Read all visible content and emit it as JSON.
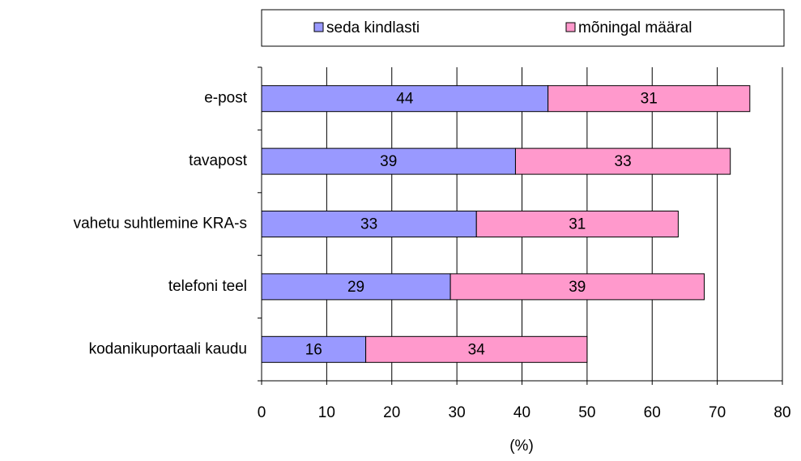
{
  "chart_data": {
    "type": "stacked_bar_horizontal",
    "categories": [
      "e-post",
      "tavapost",
      "vahetu suhtlemine KRA-s",
      "telefoni teel",
      "kodanikuportaali kaudu"
    ],
    "series": [
      {
        "name": "seda kindlasti",
        "color": "#9999ff",
        "values": [
          44,
          39,
          33,
          29,
          16
        ]
      },
      {
        "name": "mõningal määral",
        "color": "#ff99cc",
        "values": [
          31,
          33,
          31,
          39,
          34
        ]
      }
    ],
    "xlim": [
      0,
      80
    ],
    "xticks": [
      0,
      10,
      20,
      30,
      40,
      50,
      60,
      70,
      80
    ],
    "x_label": "(%)",
    "grid": true,
    "legend": "top"
  }
}
